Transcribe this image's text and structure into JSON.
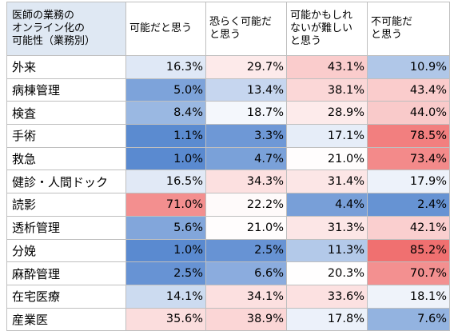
{
  "chart_data": {
    "type": "heatmap",
    "corner_header": "医師の業務の\nオンライン化の\n可能性（業務別）",
    "columns": [
      "可能だと思う",
      "恐らく可能だ\nと思う",
      "可能かもしれ\nないが難しい\nと思う",
      "不可能だ\nと思う"
    ],
    "rows": [
      {
        "label": "外来",
        "values": [
          "16.3%",
          "29.7%",
          "43.1%",
          "10.9%"
        ]
      },
      {
        "label": "病棟管理",
        "values": [
          "5.0%",
          "13.4%",
          "38.1%",
          "43.4%"
        ]
      },
      {
        "label": "検査",
        "values": [
          "8.4%",
          "18.7%",
          "28.9%",
          "44.0%"
        ]
      },
      {
        "label": "手術",
        "values": [
          "1.1%",
          "3.3%",
          "17.1%",
          "78.5%"
        ]
      },
      {
        "label": "救急",
        "values": [
          "1.0%",
          "4.7%",
          "21.0%",
          "73.4%"
        ]
      },
      {
        "label": "健診・人間ドック",
        "values": [
          "16.5%",
          "34.3%",
          "31.4%",
          "17.9%"
        ]
      },
      {
        "label": "読影",
        "values": [
          "71.0%",
          "22.2%",
          "4.4%",
          "2.4%"
        ]
      },
      {
        "label": "透析管理",
        "values": [
          "5.6%",
          "21.0%",
          "31.3%",
          "42.1%"
        ]
      },
      {
        "label": "分娩",
        "values": [
          "1.0%",
          "2.5%",
          "11.3%",
          "85.2%"
        ]
      },
      {
        "label": "麻酔管理",
        "values": [
          "2.5%",
          "6.6%",
          "20.3%",
          "70.7%"
        ]
      },
      {
        "label": "在宅医療",
        "values": [
          "14.1%",
          "34.1%",
          "33.6%",
          "18.1%"
        ]
      },
      {
        "label": "産業医",
        "values": [
          "35.6%",
          "38.9%",
          "17.8%",
          "7.6%"
        ]
      }
    ],
    "color_scale": {
      "low": "#5a8ad0",
      "mid": "#ffffff",
      "high": "#f07070"
    }
  }
}
